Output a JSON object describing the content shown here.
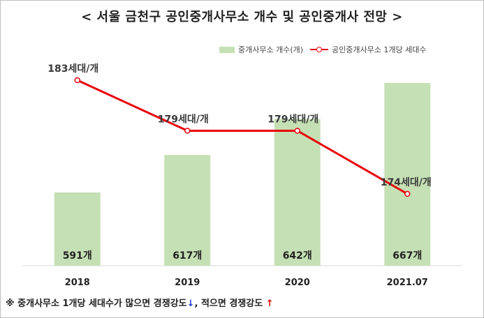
{
  "title": "< 서울 금천구 공인중개사무소 개수 및 공인중개사 전망 >",
  "legend": {
    "bar_label": "중개사무소 개수(개)",
    "line_label": "공인중개사무소 1개당 세대수"
  },
  "chart_data": {
    "type": "bar",
    "categories": [
      "2018",
      "2019",
      "2020",
      "2021.07"
    ],
    "series": [
      {
        "name": "중개사무소 개수(개)",
        "type": "bar",
        "values": [
          591,
          617,
          642,
          667
        ],
        "labels": [
          "591개",
          "617개",
          "642개",
          "667개"
        ],
        "color": "#c5e0b4"
      },
      {
        "name": "공인중개사무소 1개당 세대수",
        "type": "line",
        "values": [
          183,
          179,
          179,
          174
        ],
        "labels": [
          "183세대/개",
          "179세대/개",
          "179세대/개",
          "174세대/개"
        ],
        "color": "#e8000b"
      }
    ],
    "grid": false,
    "legend_position": "top-right"
  },
  "footnote": {
    "text1": "※ 중개사무소 1개당 세대수가 많으면 경쟁강도",
    "arrow_down": "↓",
    "text2": ", 적으면 경쟁강도 ",
    "arrow_up": "↑"
  }
}
